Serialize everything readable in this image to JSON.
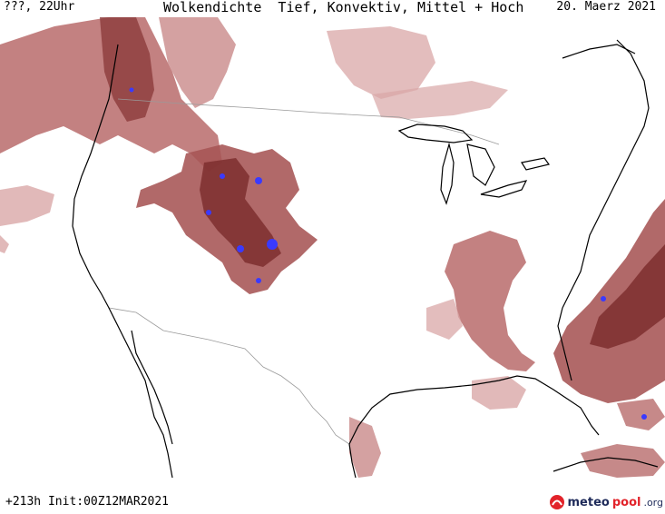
{
  "header": {
    "left": "???, 22Uhr",
    "title": "Wolkendichte  Tief, Konvektiv, Mittel + Hoch",
    "date": "20. Maerz 2021"
  },
  "footer": {
    "init": "+213h Init:00Z12MAR2021"
  },
  "logo": {
    "part1": "meteo",
    "part2": "pool",
    "part3": ".org"
  },
  "colors": {
    "cloud_light": "#d9a7a7",
    "cloud_mid": "#b86b6b",
    "cloud_dark": "#8c3b3b",
    "cloud_peak": "#3a3aff",
    "coast": "#000000",
    "border": "#9a9a9a"
  }
}
